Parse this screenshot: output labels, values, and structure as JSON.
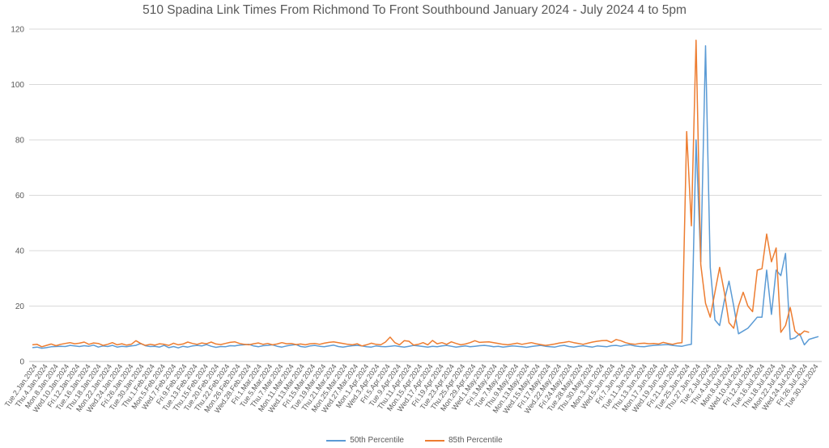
{
  "chart_data": {
    "type": "line",
    "title": "510 Spadina Link Times From Richmond To Front Southbound January 2024 - July 2024 4 to 5pm",
    "xlabel": "",
    "ylabel": "",
    "ylim": [
      0,
      120
    ],
    "yticks": [
      0,
      20,
      40,
      60,
      80,
      100,
      120
    ],
    "grid": true,
    "legend_position": "bottom",
    "x_tick_labels": [
      "Tue.2.Jan.2024",
      "Thu.4.Jan.2024",
      "Mon.8.Jan.2024",
      "Wed.10.Jan.2024",
      "Fri.12.Jan.2024",
      "Tue.16.Jan.2024",
      "Thu.18.Jan.2024",
      "Mon.22.Jan.2024",
      "Wed.24.Jan.2024",
      "Fri.26.Jan.2024",
      "Tue.30.Jan.2024",
      "Thu.1.Feb.2024",
      "Mon.5.Feb.2024",
      "Wed.7.Feb.2024",
      "Fri.9.Feb.2024",
      "Tue.13.Feb.2024",
      "Thu.15.Feb.2024",
      "Tue.20.Feb.2024",
      "Thu.22.Feb.2024",
      "Mon.26.Feb.2024",
      "Wed.28.Feb.2024",
      "Fri.1.Mar.2024",
      "Tue.5.Mar.2024",
      "Thu.7.Mar.2024",
      "Mon.11.Mar.2024",
      "Wed.13.Mar.2024",
      "Fri.15.Mar.2024",
      "Tue.19.Mar.2024",
      "Thu.21.Mar.2024",
      "Mon.25.Mar.2024",
      "Wed.27.Mar.2024",
      "Mon.1.Apr.2024",
      "Wed.3.Apr.2024",
      "Fri.5.Apr.2024",
      "Tue.9.Apr.2024",
      "Thu.11.Apr.2024",
      "Mon.15.Apr.2024",
      "Wed.17.Apr.2024",
      "Fri.19.Apr.2024",
      "Tue.23.Apr.2024",
      "Thu.25.Apr.2024",
      "Mon.29.Apr.2024",
      "Wed.1.May.2024",
      "Fri.3.May.2024",
      "Tue.7.May.2024",
      "Thu.9.May.2024",
      "Mon.13.May.2024",
      "Wed.15.May.2024",
      "Fri.17.May.2024",
      "Wed.22.May.2024",
      "Fri.24.May.2024",
      "Tue.28.May.2024",
      "Thu.30.May.2024",
      "Mon.3.Jun.2024",
      "Wed.5.Jun.2024",
      "Fri.7.Jun.2024",
      "Tue.11.Jun.2024",
      "Thu.13.Jun.2024",
      "Mon.17.Jun.2024",
      "Wed.19.Jun.2024",
      "Fri.21.Jun.2024",
      "Tue.25.Jun.2024",
      "Thu.27.Jun.2024",
      "Tue.2.Jul.2024",
      "Thu.4.Jul.2024",
      "Mon.8.Jul.2024",
      "Wed.10.Jul.2024",
      "Fri.12.Jul.2024",
      "Tue.16.Jul.2024",
      "Thu.18.Jul.2024",
      "Mon.22.Jul.2024",
      "Wed.24.Jul.2024",
      "Fri.26.Jul.2024",
      "Tue.30.Jul.2024"
    ],
    "series": [
      {
        "name": "50th Percentile",
        "color": "#5B9BD5",
        "values": [
          5.0,
          5.2,
          4.8,
          5.0,
          5.3,
          5.4,
          5.5,
          5.4,
          5.8,
          5.6,
          5.4,
          5.7,
          5.5,
          5.9,
          5.2,
          5.6,
          5.4,
          5.8,
          5.2,
          5.5,
          5.3,
          5.6,
          5.8,
          6.5,
          5.7,
          5.4,
          5.5,
          5.2,
          5.8,
          5.0,
          5.4,
          4.9,
          5.5,
          5.2,
          5.6,
          5.8,
          5.6,
          6.1,
          5.5,
          5.1,
          5.4,
          5.3,
          5.7,
          5.6,
          5.9,
          6.0,
          6.2,
          5.6,
          5.3,
          5.7,
          5.8,
          6.0,
          5.5,
          5.2,
          5.6,
          5.9,
          6.1,
          5.4,
          5.2,
          5.6,
          5.8,
          5.5,
          5.3,
          5.6,
          5.9,
          5.4,
          5.2,
          5.5,
          5.7,
          5.8,
          5.6,
          5.3,
          5.2,
          5.6,
          5.4,
          5.3,
          5.5,
          5.7,
          5.4,
          5.2,
          5.5,
          5.8,
          5.6,
          5.4,
          5.2,
          5.5,
          5.3,
          5.6,
          5.8,
          5.5,
          5.2,
          5.4,
          5.6,
          5.3,
          5.5,
          5.7,
          5.8,
          5.6,
          5.3,
          5.5,
          5.2,
          5.4,
          5.6,
          5.5,
          5.3,
          5.1,
          5.4,
          5.6,
          5.8,
          5.5,
          5.3,
          5.2,
          5.6,
          5.8,
          5.4,
          5.2,
          5.5,
          5.7,
          5.4,
          5.2,
          5.6,
          5.5,
          5.3,
          5.7,
          5.8,
          5.5,
          5.9,
          6.0,
          5.6,
          5.4,
          5.3,
          5.6,
          5.8,
          5.9,
          6.0,
          6.1,
          5.8,
          5.6,
          5.5,
          5.9,
          6.2,
          80.0,
          36.0,
          114.0,
          34.0,
          15.0,
          13.0,
          22.0,
          29.0,
          20.0,
          10.0,
          11.0,
          12.0,
          14.0,
          16.0,
          16.0,
          33.0,
          17.0,
          33.0,
          31.0,
          39.0,
          8.0,
          8.5,
          10.0,
          6.0,
          8.0,
          8.5,
          9.0
        ]
      },
      {
        "name": "85th Percentile",
        "color": "#ED7D31",
        "values": [
          6.0,
          6.2,
          5.3,
          5.8,
          6.3,
          5.7,
          6.2,
          6.5,
          6.8,
          6.4,
          6.6,
          7.0,
          6.2,
          6.7,
          6.5,
          5.8,
          6.2,
          6.8,
          6.0,
          6.4,
          5.9,
          6.2,
          7.5,
          6.5,
          5.8,
          6.2,
          5.9,
          6.4,
          6.2,
          5.8,
          6.6,
          6.0,
          6.3,
          7.0,
          6.5,
          6.2,
          6.7,
          6.4,
          7.0,
          6.3,
          6.1,
          6.5,
          6.9,
          7.1,
          6.5,
          6.2,
          6.0,
          6.4,
          6.7,
          6.2,
          6.5,
          6.0,
          6.3,
          6.8,
          6.4,
          6.5,
          6.1,
          6.3,
          6.0,
          6.4,
          6.5,
          6.2,
          6.6,
          6.9,
          7.1,
          6.8,
          6.5,
          6.2,
          6.0,
          6.4,
          5.6,
          6.0,
          6.6,
          6.2,
          6.0,
          7.0,
          8.8,
          6.8,
          6.0,
          7.5,
          7.3,
          5.9,
          6.2,
          6.8,
          6.0,
          7.6,
          6.4,
          6.8,
          6.2,
          7.1,
          6.5,
          6.0,
          6.3,
          6.8,
          7.5,
          6.9,
          7.0,
          7.1,
          6.8,
          6.5,
          6.2,
          6.0,
          6.3,
          6.6,
          6.2,
          6.5,
          6.8,
          6.4,
          6.1,
          5.8,
          6.0,
          6.3,
          6.7,
          6.9,
          7.2,
          6.8,
          6.5,
          6.2,
          6.6,
          7.0,
          7.3,
          7.5,
          7.6,
          6.9,
          7.9,
          7.5,
          6.8,
          6.4,
          6.2,
          6.5,
          6.6,
          6.4,
          6.5,
          6.3,
          6.9,
          6.5,
          6.2,
          6.6,
          6.8,
          83.0,
          49.0,
          116.0,
          35.0,
          21.0,
          16.0,
          25.0,
          34.0,
          25.0,
          14.0,
          12.0,
          20.0,
          25.0,
          20.0,
          18.0,
          33.0,
          33.5,
          46.0,
          36.0,
          41.0,
          10.5,
          13.0,
          19.5,
          11.0,
          9.5,
          11.0,
          10.5
        ]
      }
    ]
  }
}
